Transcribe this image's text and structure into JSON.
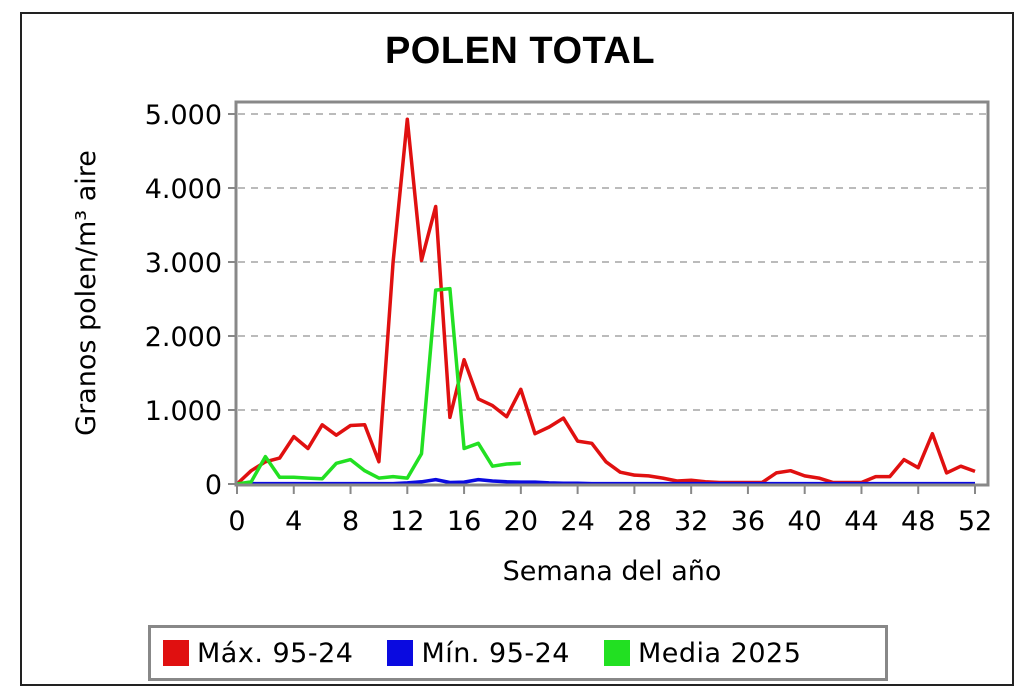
{
  "chart_data": {
    "type": "line",
    "title": "POLEN TOTAL",
    "xlabel": "Semana del año",
    "ylabel": "Granos polen/m³ aire",
    "xlim": [
      0,
      52
    ],
    "ylim": [
      0,
      5000
    ],
    "x_ticks": [
      "0",
      "4",
      "8",
      "12",
      "16",
      "20",
      "24",
      "28",
      "32",
      "36",
      "40",
      "44",
      "48",
      "52"
    ],
    "y_ticks": [
      {
        "value": 0,
        "label": "0"
      },
      {
        "value": 1000,
        "label": "1.000"
      },
      {
        "value": 2000,
        "label": "2.000"
      },
      {
        "value": 3000,
        "label": "3.000"
      },
      {
        "value": 4000,
        "label": "4.000"
      },
      {
        "value": 5000,
        "label": "5.000"
      }
    ],
    "grid": "horizontal dashed",
    "legend_position": "bottom",
    "series": [
      {
        "name": "Máx. 95-24",
        "color": "#e01010",
        "x": [
          0,
          1,
          2,
          3,
          4,
          5,
          6,
          7,
          8,
          9,
          10,
          11,
          12,
          13,
          14,
          15,
          16,
          17,
          18,
          19,
          20,
          21,
          22,
          23,
          24,
          25,
          26,
          27,
          28,
          29,
          30,
          31,
          32,
          33,
          34,
          35,
          36,
          37,
          38,
          39,
          40,
          41,
          42,
          43,
          44,
          45,
          46,
          47,
          48,
          49,
          50,
          51,
          52
        ],
        "values": [
          0,
          180,
          300,
          350,
          640,
          480,
          800,
          660,
          790,
          800,
          300,
          3000,
          4930,
          3020,
          3750,
          900,
          1680,
          1150,
          1060,
          910,
          1280,
          680,
          770,
          890,
          580,
          550,
          300,
          160,
          120,
          110,
          80,
          40,
          50,
          30,
          20,
          20,
          20,
          20,
          150,
          180,
          110,
          80,
          20,
          20,
          20,
          100,
          100,
          330,
          220,
          680,
          150,
          240,
          170
        ]
      },
      {
        "name": "Mín. 95-24",
        "color": "#0a0ae0",
        "x": [
          0,
          1,
          2,
          3,
          4,
          5,
          6,
          7,
          8,
          9,
          10,
          11,
          12,
          13,
          14,
          15,
          16,
          17,
          18,
          19,
          20,
          21,
          22,
          23,
          24,
          25,
          26,
          27,
          28,
          29,
          30,
          31,
          32,
          33,
          34,
          35,
          36,
          37,
          38,
          39,
          40,
          41,
          42,
          43,
          44,
          45,
          46,
          47,
          48,
          49,
          50,
          51,
          52
        ],
        "values": [
          0,
          5,
          5,
          5,
          5,
          5,
          5,
          5,
          5,
          5,
          5,
          5,
          15,
          30,
          60,
          20,
          25,
          60,
          40,
          30,
          25,
          25,
          15,
          10,
          10,
          5,
          5,
          5,
          5,
          5,
          5,
          5,
          5,
          5,
          5,
          5,
          5,
          5,
          5,
          5,
          5,
          5,
          5,
          5,
          5,
          5,
          5,
          5,
          5,
          5,
          5,
          5,
          5
        ]
      },
      {
        "name": "Media 2025",
        "color": "#22e022",
        "x": [
          0,
          1,
          2,
          3,
          4,
          5,
          6,
          7,
          8,
          9,
          10,
          11,
          12,
          13,
          14,
          15,
          16,
          17,
          18,
          19,
          20
        ],
        "values": [
          0,
          30,
          370,
          90,
          90,
          80,
          70,
          280,
          330,
          180,
          80,
          100,
          80,
          410,
          2620,
          2640,
          480,
          550,
          240,
          270,
          280
        ]
      }
    ]
  }
}
